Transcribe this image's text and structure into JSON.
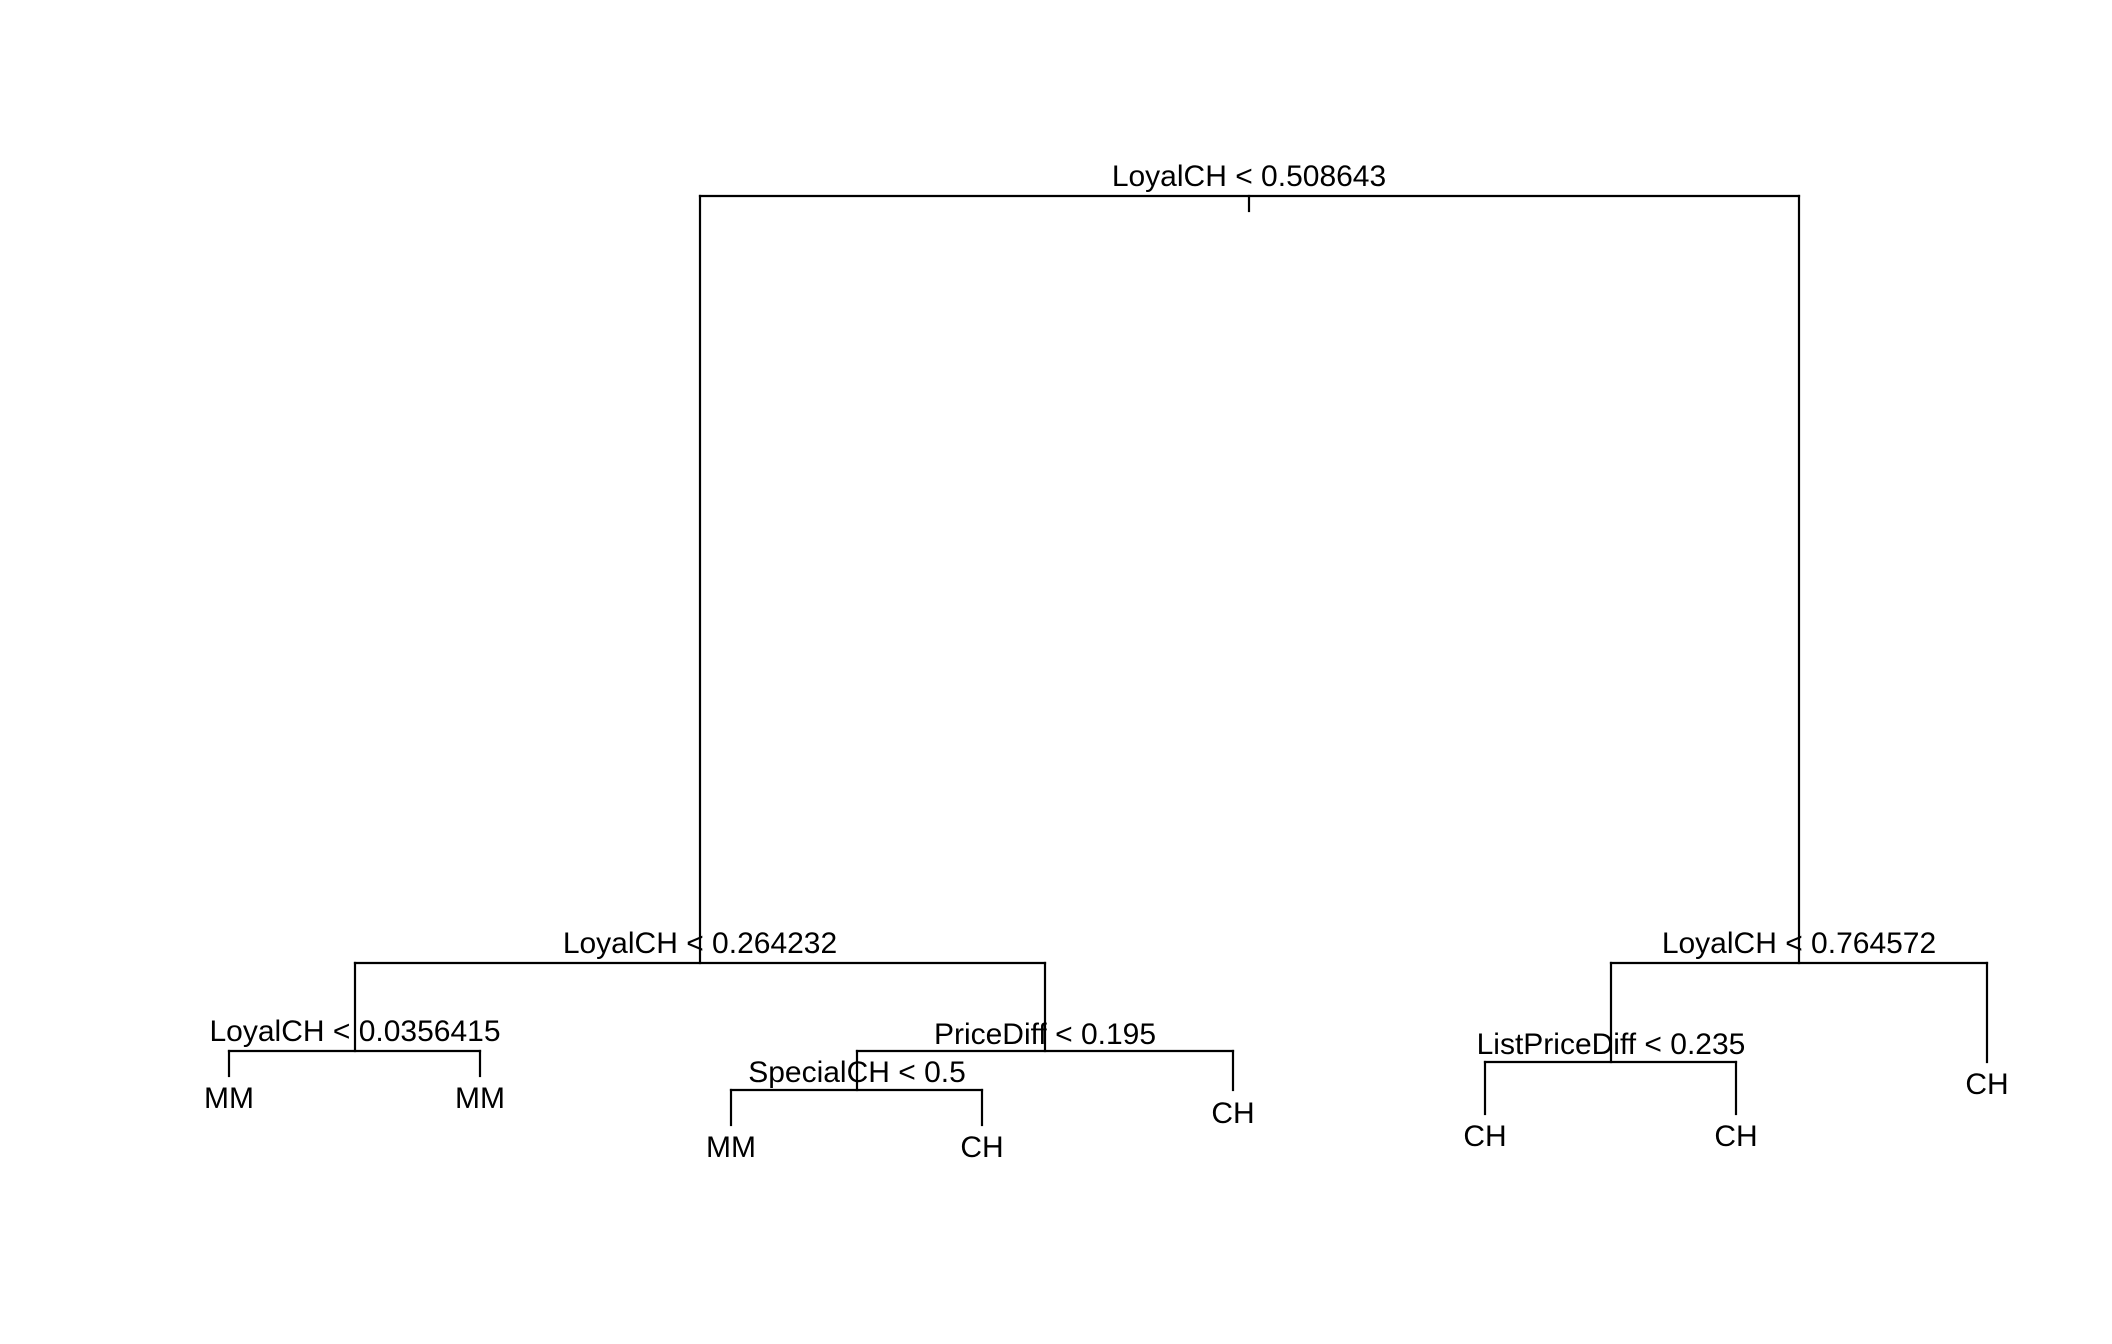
{
  "tree": {
    "splits": [
      {
        "id": "root",
        "label": "LoyalCH < 0.508643"
      },
      {
        "id": "left",
        "label": "LoyalCH < 0.264232"
      },
      {
        "id": "right",
        "label": "LoyalCH < 0.764572"
      },
      {
        "id": "left-left",
        "label": "LoyalCH < 0.0356415"
      },
      {
        "id": "left-right",
        "label": "PriceDiff < 0.195"
      },
      {
        "id": "left-right-left",
        "label": "SpecialCH < 0.5"
      },
      {
        "id": "right-left",
        "label": "ListPriceDiff < 0.235"
      }
    ],
    "leaves": [
      {
        "id": "leaf-1",
        "label": "MM"
      },
      {
        "id": "leaf-2",
        "label": "MM"
      },
      {
        "id": "leaf-3",
        "label": "MM"
      },
      {
        "id": "leaf-4",
        "label": "CH"
      },
      {
        "id": "leaf-5",
        "label": "CH"
      },
      {
        "id": "leaf-6",
        "label": "CH"
      },
      {
        "id": "leaf-7",
        "label": "CH"
      },
      {
        "id": "leaf-8",
        "label": "CH"
      }
    ]
  }
}
